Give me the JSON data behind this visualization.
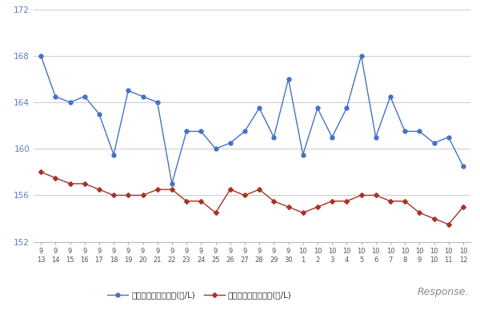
{
  "x_labels_line1": [
    "9",
    "9",
    "9",
    "9",
    "9",
    "9",
    "9",
    "9",
    "9",
    "9",
    "9",
    "9",
    "9",
    "9",
    "9",
    "9",
    "9",
    "9",
    "10",
    "10",
    "10",
    "10",
    "10",
    "10",
    "10",
    "10",
    "10",
    "10",
    "10",
    "10"
  ],
  "x_labels_line2": [
    "13",
    "14",
    "15",
    "16",
    "17",
    "18",
    "19",
    "20",
    "21",
    "22",
    "23",
    "24",
    "25",
    "26",
    "27",
    "28",
    "29",
    "30",
    "1",
    "2",
    "3",
    "4",
    "5",
    "6",
    "7",
    "8",
    "9",
    "10",
    "11",
    "12"
  ],
  "blue_values": [
    168.0,
    164.5,
    164.0,
    164.5,
    163.0,
    159.5,
    165.0,
    164.5,
    164.0,
    157.0,
    161.5,
    161.5,
    160.0,
    160.5,
    161.5,
    163.5,
    161.0,
    166.0,
    159.5,
    163.5,
    161.0,
    163.5,
    168.0,
    161.0,
    164.5,
    161.5,
    161.5,
    160.5,
    161.0,
    158.5
  ],
  "red_values": [
    158.0,
    157.5,
    157.0,
    157.0,
    156.5,
    156.0,
    156.0,
    156.0,
    156.5,
    156.5,
    155.5,
    155.5,
    154.5,
    156.5,
    156.0,
    156.5,
    155.5,
    155.0,
    154.5,
    155.0,
    155.5,
    155.5,
    156.0,
    156.0,
    155.5,
    155.5,
    154.5,
    154.0,
    153.5,
    155.0
  ],
  "blue_color": "#4472c4",
  "red_color": "#a93226",
  "blue_label": "レギュラー看板価格(円/L)",
  "red_label": "レギュラー実売価格(円/L)",
  "ylim": [
    152,
    172
  ],
  "yticks": [
    152,
    156,
    160,
    164,
    168,
    172
  ],
  "background_color": "#ffffff",
  "grid_color": "#cccccc",
  "tick_color": "#5a7fc0",
  "axis_color": "#bbbbbb"
}
